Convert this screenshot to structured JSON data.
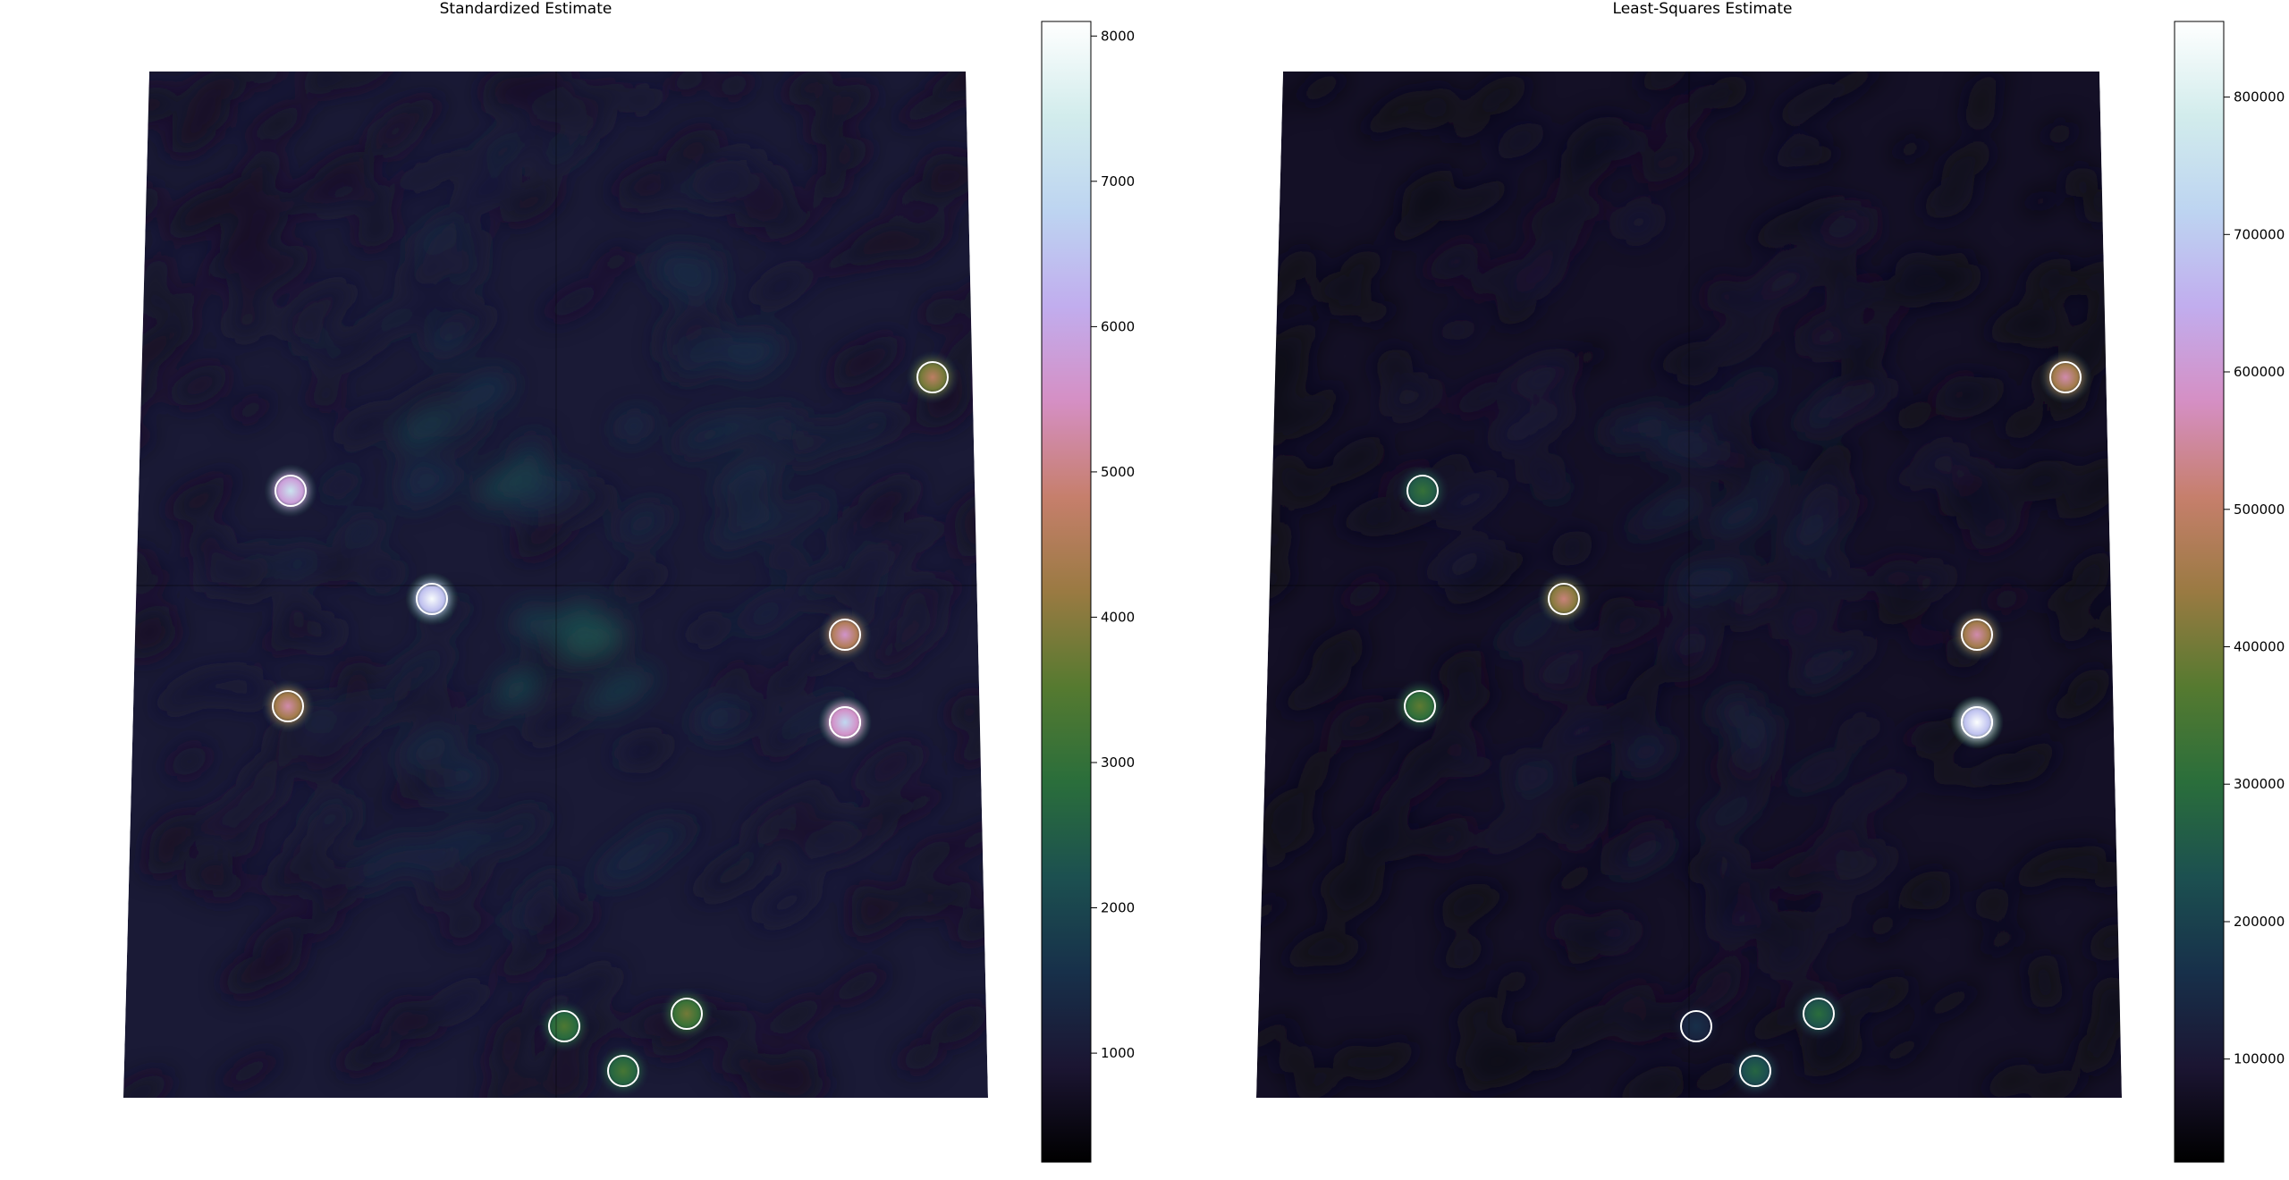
{
  "colormap": [
    "#000000",
    "#1b1532",
    "#17304a",
    "#1c5050",
    "#2a6e3b",
    "#567a30",
    "#9a7a42",
    "#c67f6c",
    "#d58fc4",
    "#c1adee",
    "#bdd4f1",
    "#d2ecec",
    "#ffffff"
  ],
  "source_ring_color": "#ffffff",
  "chart_data": [
    {
      "type": "heatmap",
      "title": "Standardized Estimate",
      "colorbar": {
        "ticks": [
          1000,
          2000,
          3000,
          4000,
          5000,
          6000,
          7000,
          8000
        ],
        "range": [
          250,
          8100
        ]
      },
      "background_level": 1650,
      "sources": [
        {
          "u": 0.64,
          "v": 0.0,
          "value": 8000
        },
        {
          "u": -0.34,
          "v": 0.43,
          "value": 7200
        },
        {
          "u": 0.34,
          "v": -0.12,
          "value": 5600
        },
        {
          "u": 0.34,
          "v": -0.36,
          "value": 6500
        },
        {
          "u": 0.34,
          "v": -0.62,
          "value": 6900
        },
        {
          "u": -0.34,
          "v": -0.62,
          "value": 5300
        },
        {
          "u": 0.64,
          "v": -1.0,
          "value": 3400
        },
        {
          "u": 0.93,
          "v": -0.95,
          "value": 3800
        },
        {
          "u": 0.78,
          "v": -1.22,
          "value": 3300
        },
        {
          "u": 2.47,
          "v": -0.14,
          "value": 4700
        }
      ]
    },
    {
      "type": "heatmap",
      "title": "Least-Squares Estimate",
      "colorbar": {
        "ticks": [
          100000,
          200000,
          300000,
          400000,
          500000,
          600000,
          700000,
          800000
        ],
        "range": [
          25000,
          855000
        ]
      },
      "background_level": 120000,
      "sources": [
        {
          "u": 0.64,
          "v": 0.0,
          "value": 520000
        },
        {
          "u": -0.34,
          "v": 0.43,
          "value": 320000
        },
        {
          "u": 0.34,
          "v": -0.12,
          "value": 560000
        },
        {
          "u": 0.34,
          "v": -0.36,
          "value": 530000
        },
        {
          "u": 0.34,
          "v": -0.62,
          "value": 850000
        },
        {
          "u": -0.34,
          "v": -0.62,
          "value": 380000
        },
        {
          "u": 0.64,
          "v": -1.0,
          "value": 160000
        },
        {
          "u": 0.93,
          "v": -0.95,
          "value": 300000
        },
        {
          "u": 0.78,
          "v": -1.22,
          "value": 280000
        },
        {
          "u": 2.47,
          "v": -0.14,
          "value": 560000
        }
      ]
    }
  ]
}
